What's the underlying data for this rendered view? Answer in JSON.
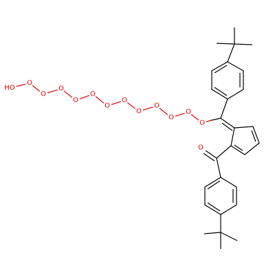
{
  "atoms": [
    "HO",
    "O",
    "O",
    "O",
    "O",
    "O",
    "O",
    "O",
    "O",
    "O",
    "O",
    "O",
    "O",
    "O"
  ]
}
